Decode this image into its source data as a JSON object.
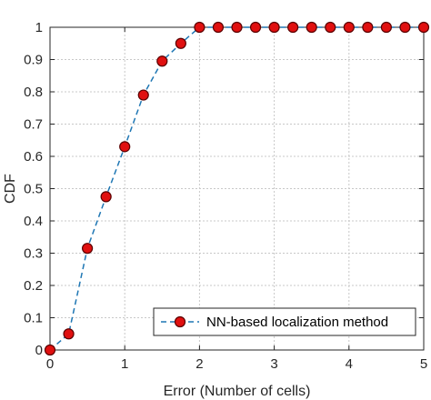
{
  "chart_data": {
    "type": "line",
    "xlabel": "Error (Number of cells)",
    "ylabel": "CDF",
    "xlim": [
      0,
      5
    ],
    "ylim": [
      0,
      1
    ],
    "xticks": [
      "0",
      "1",
      "2",
      "3",
      "4",
      "5"
    ],
    "yticks": [
      "0",
      "0.1",
      "0.2",
      "0.3",
      "0.4",
      "0.5",
      "0.6",
      "0.7",
      "0.8",
      "0.9",
      "1"
    ],
    "grid": true,
    "legend_position": "bottom-right",
    "series": [
      {
        "name": "NN-based localization method",
        "line_style": "dashed",
        "line_color": "#1f77b4",
        "marker": "circle",
        "marker_face": "#e01010",
        "marker_edge": "#5a0000",
        "x": [
          0,
          0.25,
          0.5,
          0.75,
          1.0,
          1.25,
          1.5,
          1.75,
          2.0,
          2.25,
          2.5,
          2.75,
          3.0,
          3.25,
          3.5,
          3.75,
          4.0,
          4.25,
          4.5,
          4.75,
          5.0
        ],
        "y": [
          0,
          0.05,
          0.315,
          0.475,
          0.63,
          0.79,
          0.895,
          0.95,
          1,
          1,
          1,
          1,
          1,
          1,
          1,
          1,
          1,
          1,
          1,
          1,
          1
        ]
      }
    ]
  }
}
